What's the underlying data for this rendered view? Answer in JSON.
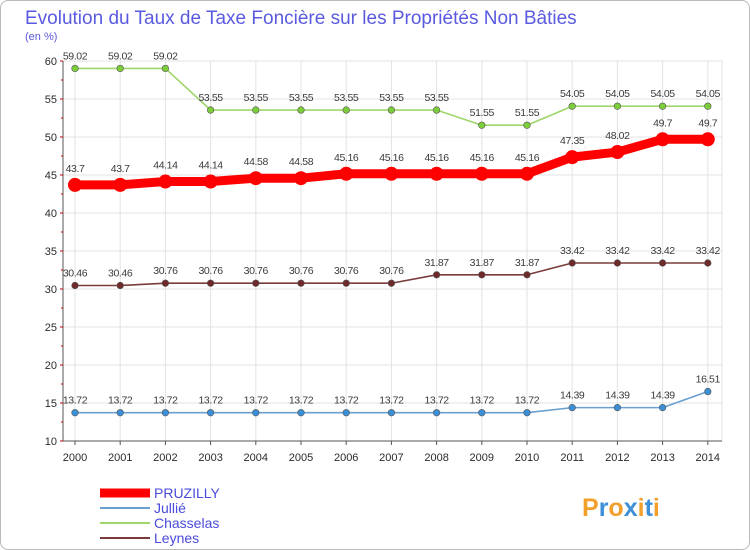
{
  "chart_data": {
    "type": "line",
    "title": "Evolution du Taux de Taxe Foncière sur les Propriétés Non Bâties",
    "subtitle": "(en %)",
    "xlabel": "",
    "ylabel": "",
    "ylim": [
      10,
      60
    ],
    "yticks": [
      "10",
      "15",
      "20",
      "25",
      "30",
      "35",
      "40",
      "45",
      "50",
      "55",
      "60"
    ],
    "categories": [
      "2000",
      "2001",
      "2002",
      "2003",
      "2004",
      "2005",
      "2006",
      "2007",
      "2008",
      "2009",
      "2010",
      "2011",
      "2012",
      "2013",
      "2014"
    ],
    "legend_position": "bottom-left",
    "series": [
      {
        "name": "PRUZILLY",
        "color": "#ff0000",
        "marker_color": "#ff0000",
        "highlight": true,
        "values": [
          43.7,
          43.7,
          44.14,
          44.14,
          44.58,
          44.58,
          45.16,
          45.16,
          45.16,
          45.16,
          45.16,
          47.35,
          48.02,
          49.7,
          49.7
        ],
        "labels": [
          "43.7",
          "43.7",
          "44.14",
          "44.14",
          "44.58",
          "44.58",
          "45.16",
          "45.16",
          "45.16",
          "45.16",
          "45.16",
          "47.35",
          "48.02",
          "49.7",
          "49.7"
        ]
      },
      {
        "name": "Jullié",
        "color": "#6a9fd0",
        "marker_color": "#3a8fd6",
        "highlight": false,
        "values": [
          13.72,
          13.72,
          13.72,
          13.72,
          13.72,
          13.72,
          13.72,
          13.72,
          13.72,
          13.72,
          13.72,
          14.39,
          14.39,
          14.39,
          16.51
        ],
        "labels": [
          "13.72",
          "13.72",
          "13.72",
          "13.72",
          "13.72",
          "13.72",
          "13.72",
          "13.72",
          "13.72",
          "13.72",
          "13.72",
          "14.39",
          "14.39",
          "14.39",
          "16.51"
        ]
      },
      {
        "name": "Chasselas",
        "color": "#9ed66a",
        "marker_color": "#7ccd3a",
        "highlight": false,
        "values": [
          59.02,
          59.02,
          59.02,
          53.55,
          53.55,
          53.55,
          53.55,
          53.55,
          53.55,
          51.55,
          51.55,
          54.05,
          54.05,
          54.05,
          54.05
        ],
        "labels": [
          "59.02",
          "59.02",
          "59.02",
          "53.55",
          "53.55",
          "53.55",
          "53.55",
          "53.55",
          "53.55",
          "51.55",
          "51.55",
          "54.05",
          "54.05",
          "54.05",
          "54.05"
        ]
      },
      {
        "name": "Leynes",
        "color": "#7a3b3b",
        "marker_color": "#6e2a2a",
        "highlight": false,
        "values": [
          30.46,
          30.46,
          30.76,
          30.76,
          30.76,
          30.76,
          30.76,
          30.76,
          31.87,
          31.87,
          31.87,
          33.42,
          33.42,
          33.42,
          33.42
        ],
        "labels": [
          "30.46",
          "30.46",
          "30.76",
          "30.76",
          "30.76",
          "30.76",
          "30.76",
          "30.76",
          "31.87",
          "31.87",
          "31.87",
          "33.42",
          "33.42",
          "33.42",
          "33.42"
        ]
      }
    ]
  },
  "logo": {
    "letters": [
      "P",
      "r",
      "o",
      "x",
      "i",
      "t",
      "i"
    ],
    "colors": [
      "#f2a02b",
      "#3d8fd8",
      "#f2a02b",
      "#3d8fd8",
      "#f2a02b",
      "#3d8fd8",
      "#f2a02b"
    ]
  }
}
